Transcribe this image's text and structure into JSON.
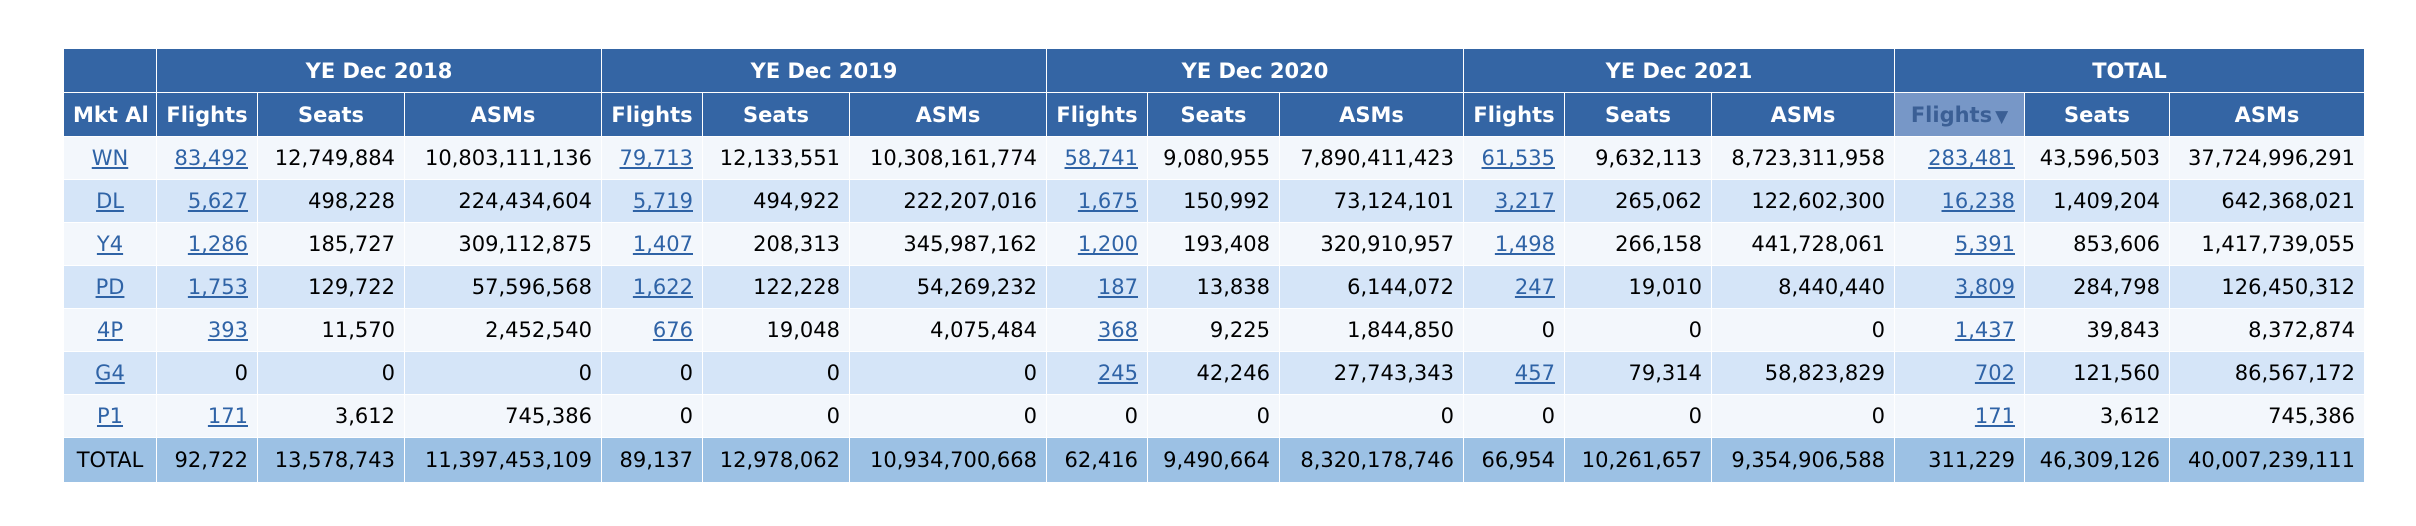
{
  "table": {
    "corner_label": "",
    "groups": [
      "YE Dec 2018",
      "YE Dec 2019",
      "YE Dec 2020",
      "YE Dec 2021",
      "TOTAL"
    ],
    "first_col_header": "Mkt Al",
    "metric_headers": [
      "Flights",
      "Seats",
      "ASMs"
    ],
    "sorted_header": "Flights",
    "sort_arrow": "▼",
    "rows": [
      {
        "carrier": "WN",
        "cells": [
          "83,492",
          "12,749,884",
          "10,803,111,136",
          "79,713",
          "12,133,551",
          "10,308,161,774",
          "58,741",
          "9,080,955",
          "7,890,411,423",
          "61,535",
          "9,632,113",
          "8,723,311,958",
          "283,481",
          "43,596,503",
          "37,724,996,291"
        ]
      },
      {
        "carrier": "DL",
        "cells": [
          "5,627",
          "498,228",
          "224,434,604",
          "5,719",
          "494,922",
          "222,207,016",
          "1,675",
          "150,992",
          "73,124,101",
          "3,217",
          "265,062",
          "122,602,300",
          "16,238",
          "1,409,204",
          "642,368,021"
        ]
      },
      {
        "carrier": "Y4",
        "cells": [
          "1,286",
          "185,727",
          "309,112,875",
          "1,407",
          "208,313",
          "345,987,162",
          "1,200",
          "193,408",
          "320,910,957",
          "1,498",
          "266,158",
          "441,728,061",
          "5,391",
          "853,606",
          "1,417,739,055"
        ]
      },
      {
        "carrier": "PD",
        "cells": [
          "1,753",
          "129,722",
          "57,596,568",
          "1,622",
          "122,228",
          "54,269,232",
          "187",
          "13,838",
          "6,144,072",
          "247",
          "19,010",
          "8,440,440",
          "3,809",
          "284,798",
          "126,450,312"
        ]
      },
      {
        "carrier": "4P",
        "cells": [
          "393",
          "11,570",
          "2,452,540",
          "676",
          "19,048",
          "4,075,484",
          "368",
          "9,225",
          "1,844,850",
          "0",
          "0",
          "0",
          "1,437",
          "39,843",
          "8,372,874"
        ]
      },
      {
        "carrier": "G4",
        "cells": [
          "0",
          "0",
          "0",
          "0",
          "0",
          "0",
          "245",
          "42,246",
          "27,743,343",
          "457",
          "79,314",
          "58,823,829",
          "702",
          "121,560",
          "86,567,172"
        ]
      },
      {
        "carrier": "P1",
        "cells": [
          "171",
          "3,612",
          "745,386",
          "0",
          "0",
          "0",
          "0",
          "0",
          "0",
          "0",
          "0",
          "0",
          "171",
          "3,612",
          "745,386"
        ]
      }
    ],
    "total_row": {
      "label": "TOTAL",
      "cells": [
        "92,722",
        "13,578,743",
        "11,397,453,109",
        "89,137",
        "12,978,062",
        "10,934,700,668",
        "62,416",
        "9,490,664",
        "8,320,178,746",
        "66,954",
        "10,261,657",
        "9,354,906,588",
        "311,229",
        "46,309,126",
        "40,007,239,111"
      ]
    }
  },
  "colors": {
    "header_bg": "#3465a4",
    "sorted_header_bg": "#7797c7",
    "row_light": "#f3f7fc",
    "row_mid": "#d5e5f8",
    "total_bg": "#9cc1e4",
    "link": "#2f63a6"
  }
}
